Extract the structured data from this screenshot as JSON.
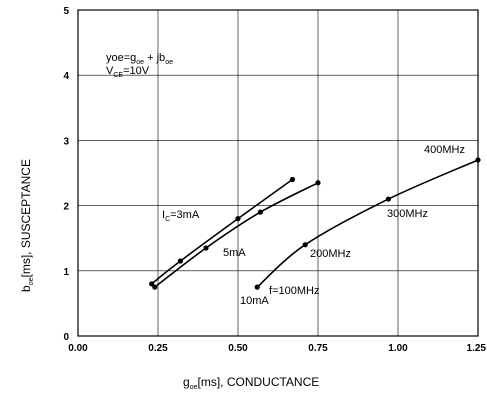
{
  "chart_data": {
    "type": "line",
    "title": "",
    "xlabel": {
      "main": "g",
      "sub": "oe",
      "rest": "[ms], CONDUCTANCE"
    },
    "ylabel": {
      "main": "b",
      "sub": "oe",
      "rest": "[ms], SUSCEPTANCE"
    },
    "xlim": [
      0,
      1.25
    ],
    "ylim": [
      0,
      5
    ],
    "x_ticks": [
      "0.00",
      "0.25",
      "0.50",
      "0.75",
      "1.00",
      "1.25"
    ],
    "y_ticks": [
      "0",
      "1",
      "2",
      "3",
      "4",
      "5"
    ],
    "grid": true,
    "formula": {
      "line1": {
        "a": "yoe=g",
        "a_sub": "oe",
        "b": " + jb",
        "b_sub": "oe"
      },
      "line2": {
        "a": "V",
        "a_sub": "CE",
        "b": "=10V"
      }
    },
    "series": [
      {
        "points": [
          [
            0.23,
            0.8
          ],
          [
            0.32,
            1.15
          ],
          [
            0.5,
            1.8
          ],
          [
            0.67,
            2.4
          ]
        ]
      },
      {
        "points": [
          [
            0.24,
            0.75
          ],
          [
            0.4,
            1.35
          ],
          [
            0.57,
            1.9
          ],
          [
            0.75,
            2.35
          ]
        ]
      },
      {
        "points": [
          [
            0.56,
            0.75
          ],
          [
            0.71,
            1.4
          ],
          [
            0.97,
            2.1
          ],
          [
            1.25,
            2.7
          ]
        ]
      }
    ],
    "annotations": {
      "ic3": {
        "main": "I",
        "sub": "C",
        "rest": "=3mA"
      },
      "ma5": "5mA",
      "ma10": "10mA",
      "f100": "f=100MHz",
      "f200": "200MHz",
      "f300": "300MHz",
      "f400": "400MHz"
    }
  }
}
